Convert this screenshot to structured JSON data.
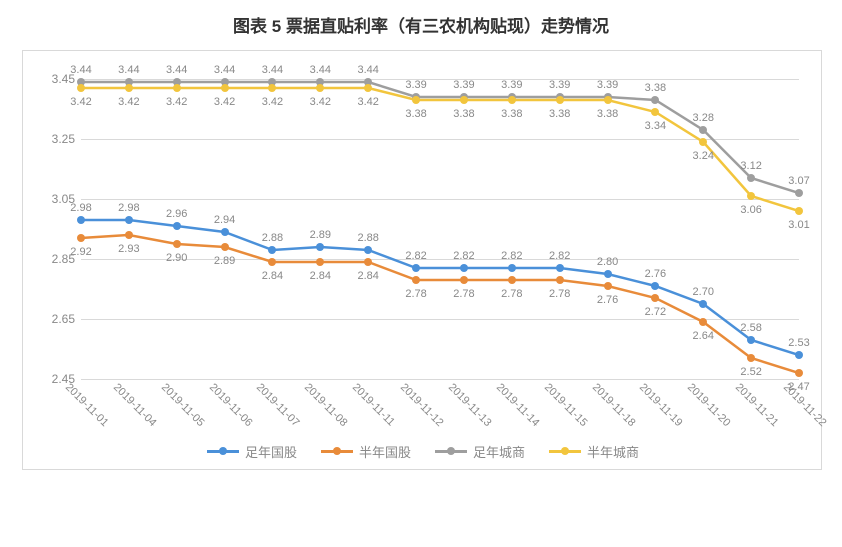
{
  "title": "图表 5  票据直贴利率（有三农机构贴现）走势情况",
  "chart": {
    "type": "line",
    "background_color": "#ffffff",
    "grid_color": "#d9d9d9",
    "border_color": "#d9d9d9",
    "title_fontsize": 17,
    "tick_fontsize": 12,
    "xtick_fontsize": 11,
    "label_fontsize": 11,
    "xtick_rotation_deg": 45,
    "ylim": [
      2.45,
      3.45
    ],
    "ytick_step": 0.2,
    "yticks": [
      "2.45",
      "2.65",
      "2.85",
      "3.05",
      "3.25",
      "3.45"
    ],
    "line_width": 2.5,
    "marker_style": "circle",
    "marker_size": 8,
    "categories": [
      "2019-11-01",
      "2019-11-04",
      "2019-11-05",
      "2019-11-06",
      "2019-11-07",
      "2019-11-08",
      "2019-11-11",
      "2019-11-12",
      "2019-11-13",
      "2019-11-14",
      "2019-11-15",
      "2019-11-18",
      "2019-11-19",
      "2019-11-20",
      "2019-11-21",
      "2019-11-22"
    ],
    "series": [
      {
        "name": "足年国股",
        "color": "#4a90d9",
        "values": [
          2.98,
          2.98,
          2.96,
          2.94,
          2.88,
          2.89,
          2.88,
          2.82,
          2.82,
          2.82,
          2.82,
          2.8,
          2.76,
          2.7,
          2.58,
          2.53
        ],
        "label_dy": -18
      },
      {
        "name": "半年国股",
        "color": "#e88b3a",
        "values": [
          2.92,
          2.93,
          2.9,
          2.89,
          2.84,
          2.84,
          2.84,
          2.78,
          2.78,
          2.78,
          2.78,
          2.76,
          2.72,
          2.64,
          2.52,
          2.47
        ],
        "label_dy": 8
      },
      {
        "name": "足年城商",
        "color": "#9e9e9e",
        "values": [
          3.44,
          3.44,
          3.44,
          3.44,
          3.44,
          3.44,
          3.44,
          3.39,
          3.39,
          3.39,
          3.39,
          3.39,
          3.38,
          3.28,
          3.12,
          3.07
        ],
        "label_dy": -18
      },
      {
        "name": "半年城商",
        "color": "#f2c53d",
        "values": [
          3.42,
          3.42,
          3.42,
          3.42,
          3.42,
          3.42,
          3.42,
          3.38,
          3.38,
          3.38,
          3.38,
          3.38,
          3.34,
          3.24,
          3.06,
          3.01
        ],
        "label_dy": 8
      }
    ],
    "legend_position": "bottom"
  }
}
